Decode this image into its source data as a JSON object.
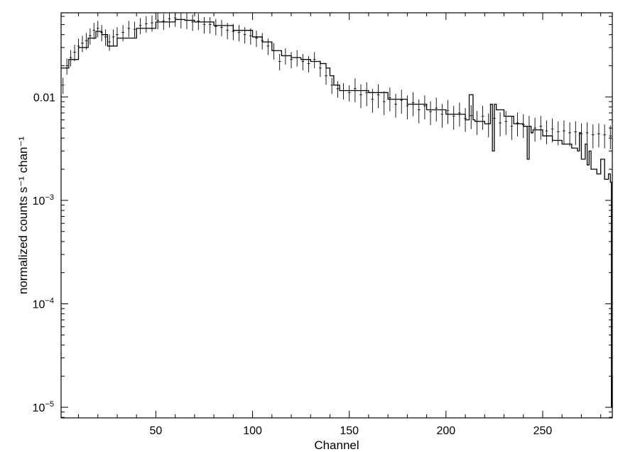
{
  "chart_data": {
    "type": "line",
    "title": "",
    "xlabel": "Channel",
    "ylabel": "normalized counts s⁻¹ chan⁻¹",
    "xlim": [
      1,
      286
    ],
    "ylim": [
      7.9e-06,
      0.065
    ],
    "yscale": "log",
    "grid": false,
    "xticks": [
      {
        "value": 50,
        "label": "50"
      },
      {
        "value": 100,
        "label": "100"
      },
      {
        "value": 150,
        "label": "150"
      },
      {
        "value": 200,
        "label": "200"
      },
      {
        "value": 250,
        "label": "250"
      }
    ],
    "yticks": [
      {
        "value": 1e-05,
        "base": "10",
        "exp": "−5"
      },
      {
        "value": 0.0001,
        "base": "10",
        "exp": "−4"
      },
      {
        "value": 0.001,
        "base": "10",
        "exp": "−3"
      },
      {
        "value": 0.01,
        "base": "0.01",
        "exp": ""
      }
    ],
    "series": [
      {
        "kind": "model-step",
        "color": "#000000",
        "x": [
          1,
          5,
          10,
          15,
          19,
          22,
          25,
          30,
          40,
          50,
          60,
          65,
          70,
          80,
          90,
          100,
          105,
          110,
          115,
          120,
          125,
          130,
          135,
          138,
          140,
          142,
          145,
          150,
          160,
          170,
          180,
          190,
          200,
          210,
          212,
          213,
          214,
          215,
          220,
          223,
          224,
          225,
          226,
          230,
          235,
          240,
          242,
          243,
          244,
          245,
          250,
          255,
          260,
          265,
          268,
          269,
          270,
          272,
          273,
          274,
          275,
          278,
          280,
          282,
          284,
          285,
          285.5,
          286
        ],
        "y": [
          0.019,
          0.023,
          0.03,
          0.037,
          0.043,
          0.04,
          0.031,
          0.037,
          0.046,
          0.053,
          0.056,
          0.055,
          0.053,
          0.049,
          0.044,
          0.038,
          0.034,
          0.028,
          0.025,
          0.024,
          0.023,
          0.022,
          0.021,
          0.019,
          0.016,
          0.013,
          0.0115,
          0.0115,
          0.011,
          0.0095,
          0.0085,
          0.0075,
          0.0068,
          0.006,
          0.0105,
          0.0105,
          0.006,
          0.0058,
          0.0055,
          0.0085,
          0.003,
          0.0085,
          0.0075,
          0.0065,
          0.0055,
          0.0052,
          0.0025,
          0.0052,
          0.0045,
          0.0048,
          0.0042,
          0.0038,
          0.0035,
          0.0032,
          0.003,
          0.0045,
          0.0025,
          0.0035,
          0.0022,
          0.003,
          0.002,
          0.0018,
          0.0025,
          0.0016,
          0.0018,
          0.0015,
          1e-05,
          2e-05
        ]
      },
      {
        "kind": "data-points-with-errors",
        "color": "#000000",
        "x": [
          2,
          4,
          6,
          8,
          10,
          12,
          14,
          16,
          18,
          20,
          22,
          24,
          26,
          28,
          30,
          33,
          36,
          39,
          42,
          45,
          48,
          51,
          54,
          57,
          60,
          63,
          66,
          69,
          72,
          75,
          78,
          81,
          84,
          87,
          90,
          93,
          96,
          99,
          102,
          105,
          108,
          111,
          114,
          117,
          120,
          123,
          126,
          129,
          132,
          135,
          138,
          141,
          144,
          147,
          150,
          153,
          156,
          159,
          162,
          165,
          168,
          171,
          174,
          177,
          180,
          183,
          186,
          189,
          192,
          195,
          198,
          201,
          204,
          207,
          210,
          213,
          216,
          219,
          222,
          225,
          228,
          231,
          234,
          237,
          240,
          243,
          246,
          249,
          252,
          255,
          258,
          261,
          264,
          267,
          270,
          273,
          276,
          279,
          282,
          285
        ],
        "y": [
          0.013,
          0.02,
          0.024,
          0.027,
          0.031,
          0.033,
          0.035,
          0.039,
          0.044,
          0.046,
          0.042,
          0.038,
          0.034,
          0.038,
          0.04,
          0.042,
          0.046,
          0.045,
          0.049,
          0.051,
          0.052,
          0.055,
          0.054,
          0.057,
          0.058,
          0.056,
          0.055,
          0.053,
          0.054,
          0.05,
          0.05,
          0.048,
          0.047,
          0.044,
          0.043,
          0.042,
          0.04,
          0.039,
          0.037,
          0.035,
          0.031,
          0.028,
          0.022,
          0.025,
          0.023,
          0.024,
          0.022,
          0.021,
          0.023,
          0.019,
          0.016,
          0.013,
          0.012,
          0.0115,
          0.011,
          0.012,
          0.0105,
          0.011,
          0.0095,
          0.0105,
          0.009,
          0.0098,
          0.0085,
          0.0093,
          0.0082,
          0.0088,
          0.0075,
          0.0082,
          0.0072,
          0.0078,
          0.0068,
          0.0074,
          0.0065,
          0.007,
          0.0062,
          0.0066,
          0.0058,
          0.0065,
          0.0055,
          0.0062,
          0.0056,
          0.0058,
          0.0052,
          0.0056,
          0.0054,
          0.0052,
          0.005,
          0.0052,
          0.0047,
          0.0049,
          0.0046,
          0.0047,
          0.0045,
          0.0046,
          0.0044,
          0.0045,
          0.0043,
          0.0044,
          0.0043,
          0.0042
        ]
      }
    ]
  }
}
